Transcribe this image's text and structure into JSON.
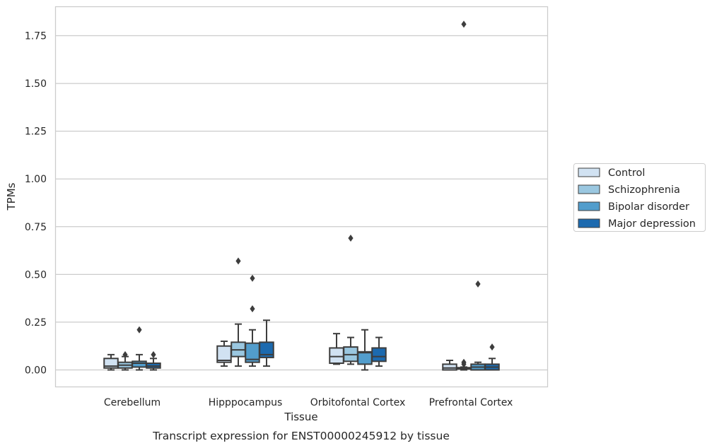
{
  "chart_data": {
    "type": "box",
    "title": "Transcript expression for ENST00000245912 by tissue",
    "xlabel": "Tissue",
    "ylabel": "TPMs",
    "ylim": [
      -0.09,
      1.9
    ],
    "yticks": [
      "0.00",
      "0.25",
      "0.50",
      "0.75",
      "1.00",
      "1.25",
      "1.50",
      "1.75"
    ],
    "ytick_values": [
      0,
      0.25,
      0.5,
      0.75,
      1.0,
      1.25,
      1.5,
      1.75
    ],
    "grid": "horizontal",
    "legend_position": "right",
    "categories": [
      "Cerebellum",
      "Hipppocampus",
      "Orbitofontal Cortex",
      "Prefrontal Cortex"
    ],
    "series": [
      {
        "name": "Control",
        "color": "#d1e2f2",
        "boxes": [
          {
            "q1": 0.01,
            "median": 0.02,
            "q3": 0.06,
            "whislo": 0.0,
            "whishi": 0.08,
            "fliers": []
          },
          {
            "q1": 0.04,
            "median": 0.05,
            "q3": 0.125,
            "whislo": 0.02,
            "whishi": 0.15,
            "fliers": []
          },
          {
            "q1": 0.035,
            "median": 0.07,
            "q3": 0.115,
            "whislo": 0.03,
            "whishi": 0.19,
            "fliers": []
          },
          {
            "q1": 0.0,
            "median": 0.01,
            "q3": 0.03,
            "whislo": 0.0,
            "whishi": 0.05,
            "fliers": []
          }
        ]
      },
      {
        "name": "Schizophrenia",
        "color": "#9ac7e0",
        "boxes": [
          {
            "q1": 0.01,
            "median": 0.025,
            "q3": 0.04,
            "whislo": 0.0,
            "whishi": 0.07,
            "fliers": [
              0.08
            ]
          },
          {
            "q1": 0.07,
            "median": 0.105,
            "q3": 0.145,
            "whislo": 0.02,
            "whishi": 0.24,
            "fliers": [
              0.57
            ]
          },
          {
            "q1": 0.045,
            "median": 0.08,
            "q3": 0.12,
            "whislo": 0.03,
            "whishi": 0.17,
            "fliers": [
              0.69
            ]
          },
          {
            "q1": 0.005,
            "median": 0.008,
            "q3": 0.012,
            "whislo": 0.0,
            "whishi": 0.015,
            "fliers": [
              1.81,
              0.04,
              0.03
            ]
          }
        ]
      },
      {
        "name": "Bipolar disorder",
        "color": "#529dcc",
        "boxes": [
          {
            "q1": 0.015,
            "median": 0.035,
            "q3": 0.045,
            "whislo": 0.0,
            "whishi": 0.08,
            "fliers": [
              0.21
            ]
          },
          {
            "q1": 0.04,
            "median": 0.055,
            "q3": 0.14,
            "whislo": 0.02,
            "whishi": 0.21,
            "fliers": [
              0.48,
              0.32
            ]
          },
          {
            "q1": 0.03,
            "median": 0.09,
            "q3": 0.095,
            "whislo": 0.0,
            "whishi": 0.21,
            "fliers": []
          },
          {
            "q1": 0.0,
            "median": 0.015,
            "q3": 0.03,
            "whislo": 0.0,
            "whishi": 0.04,
            "fliers": [
              0.45
            ]
          }
        ]
      },
      {
        "name": "Major depression",
        "color": "#1c6aaf",
        "boxes": [
          {
            "q1": 0.01,
            "median": 0.02,
            "q3": 0.035,
            "whislo": 0.0,
            "whishi": 0.06,
            "fliers": [
              0.08
            ]
          },
          {
            "q1": 0.065,
            "median": 0.08,
            "q3": 0.145,
            "whislo": 0.02,
            "whishi": 0.26,
            "fliers": []
          },
          {
            "q1": 0.045,
            "median": 0.07,
            "q3": 0.115,
            "whislo": 0.02,
            "whishi": 0.17,
            "fliers": []
          },
          {
            "q1": 0.0,
            "median": 0.015,
            "q3": 0.03,
            "whislo": 0.0,
            "whishi": 0.06,
            "fliers": [
              0.12
            ]
          }
        ]
      }
    ]
  }
}
